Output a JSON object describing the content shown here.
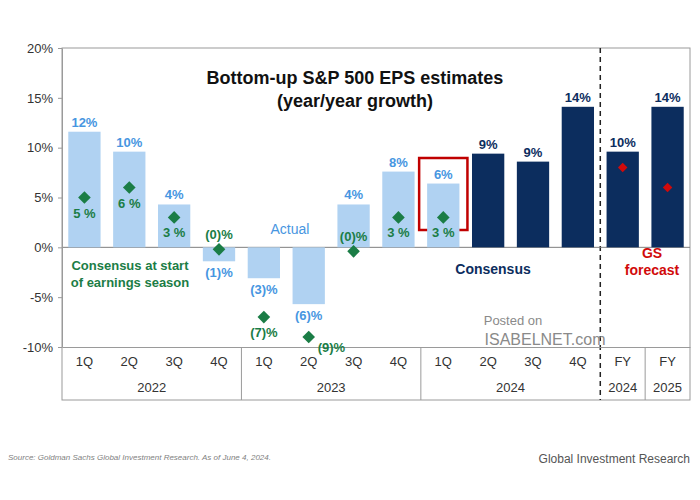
{
  "chart_data": {
    "type": "bar",
    "title": "Bottom-up S&P 500 EPS estimates",
    "subtitle": "(year/year growth)",
    "categories": [
      "1Q",
      "2Q",
      "3Q",
      "4Q",
      "1Q",
      "2Q",
      "3Q",
      "4Q",
      "1Q",
      "2Q",
      "3Q",
      "4Q",
      "FY",
      "FY"
    ],
    "x_groups": [
      {
        "label": "2022",
        "count": 4
      },
      {
        "label": "2023",
        "count": 4
      },
      {
        "label": "2024",
        "count": 4
      },
      {
        "label": "2024",
        "count": 1
      },
      {
        "label": "2025",
        "count": 1
      }
    ],
    "ylim": [
      -10,
      20
    ],
    "yticks": [
      {
        "value": -10,
        "label": "-10%"
      },
      {
        "value": -5,
        "label": "-5%"
      },
      {
        "value": 0,
        "label": "0%"
      },
      {
        "value": 5,
        "label": "5%"
      },
      {
        "value": 10,
        "label": "10%"
      },
      {
        "value": 15,
        "label": "15%"
      },
      {
        "value": 20,
        "label": "20%"
      }
    ],
    "grid": false,
    "series": [
      {
        "name": "Actual",
        "type": "bar",
        "color": "#b0d2f2",
        "values": [
          11.6,
          9.6,
          4.3,
          -1.4,
          -3.1,
          -5.7,
          4.3,
          7.6,
          6.4,
          null,
          null,
          null,
          null,
          null
        ],
        "data_labels": true,
        "value_labels": [
          "12%",
          "10%",
          "4%",
          "(1)%",
          "(3)%",
          "(6)%",
          "4%",
          "8%",
          "6%",
          null,
          null,
          null,
          null,
          null
        ]
      },
      {
        "name": "Consensus",
        "type": "bar",
        "color": "#0c2d5e",
        "values": [
          null,
          null,
          null,
          null,
          null,
          null,
          null,
          null,
          null,
          9.4,
          8.6,
          14.1,
          9.6,
          14.1
        ],
        "data_labels": true,
        "value_labels": [
          null,
          null,
          null,
          null,
          null,
          null,
          null,
          null,
          null,
          "9%",
          "9%",
          "14%",
          "10%",
          "14%"
        ]
      },
      {
        "name": "Consensus at start of earnings season",
        "type": "scatter",
        "marker": "diamond",
        "color": "#1b7d46",
        "values": [
          5,
          6,
          3,
          -0.2,
          -7,
          -9,
          -0.4,
          3,
          3,
          null,
          null,
          null,
          null,
          null
        ],
        "data_labels": true,
        "value_labels": [
          "5 %",
          "6 %",
          "3 %",
          "(0)%",
          "(7)%",
          "(9)%",
          "(0)%",
          "3 %",
          "3 %",
          null,
          null,
          null,
          null,
          null
        ]
      },
      {
        "name": "GS forecast",
        "type": "scatter",
        "marker": "diamond",
        "color": "#d10a0a",
        "values": [
          null,
          null,
          null,
          null,
          null,
          null,
          null,
          null,
          null,
          null,
          null,
          null,
          8,
          6
        ],
        "data_labels": false
      }
    ],
    "annotations": [
      "Posted on",
      "ISABELNET.com",
      "Source: Goldman Sachs Global Investment Research. As of June 4, 2024.",
      "Global Investment Research"
    ]
  }
}
